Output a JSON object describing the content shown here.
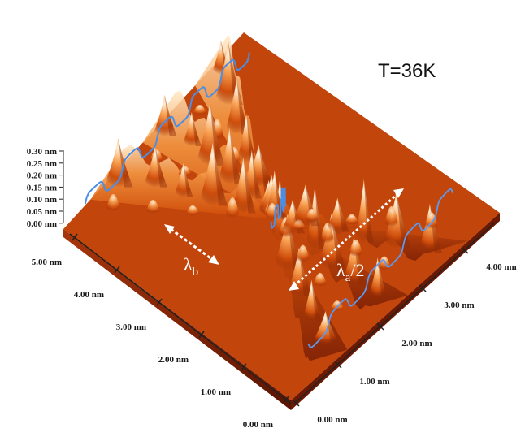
{
  "figure": {
    "temperature_label": "T=36K",
    "z_axis": {
      "ticks": [
        "0.30 nm",
        "0.25 nm",
        "0.20 nm",
        "0.15 nm",
        "0.10 nm",
        "0.05 nm",
        "0.00 nm"
      ]
    },
    "y_axis": {
      "ticks": [
        "5.00 nm",
        "4.00 nm",
        "3.00 nm",
        "2.00 nm",
        "1.00 nm",
        "0.00 nm"
      ]
    },
    "x_axis": {
      "ticks": [
        "0.00 nm",
        "1.00 nm",
        "2.00 nm",
        "3.00 nm",
        "4.00 nm"
      ]
    },
    "annotations": {
      "lambda_b": {
        "symbol": "λ",
        "subscript": "b"
      },
      "lambda_a_half": {
        "symbol": "λ",
        "subscript": "a",
        "suffix": "/2"
      }
    },
    "colors": {
      "surface_dark": "#7a1e04",
      "surface_mid": "#d9580f",
      "surface_light": "#ffe2b8",
      "trace": "#4a8ee8",
      "arrow": "#ffffff"
    }
  }
}
